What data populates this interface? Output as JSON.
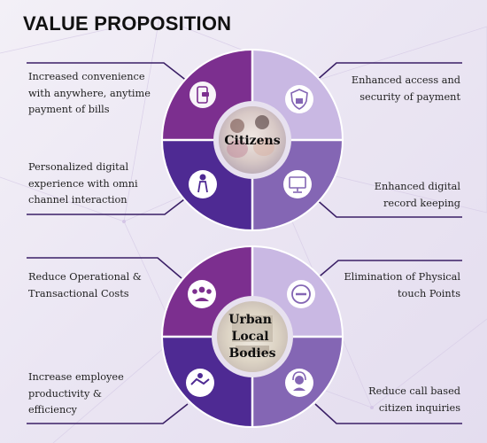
{
  "title": "VALUE PROPOSITION",
  "citizens": {
    "label": "Citizens",
    "callouts": {
      "top_left": "Increased convenience with anywhere, anytime payment of bills",
      "top_right": "Enhanced access and security of payment",
      "bottom_left": "Personalized digital experience with omni channel interaction",
      "bottom_right": "Enhanced digital record keeping"
    },
    "icons": {
      "top_left": "mobile-payment-icon",
      "top_right": "shield-lock-icon",
      "bottom_left": "person-touch-icon",
      "bottom_right": "computer-records-icon"
    }
  },
  "ulb": {
    "label_lines": [
      "Urban",
      "Local",
      "Bodies"
    ],
    "callouts": {
      "top_left": "Reduce Operational & Transactional Costs",
      "top_right": "Elimination of Physical touch Points",
      "bottom_left": "Increase employee productivity & efficiency",
      "bottom_right": "Reduce call based citizen inquiries"
    },
    "icons": {
      "top_left": "team-icon",
      "top_right": "no-entry-icon",
      "bottom_left": "handshake-icon",
      "bottom_right": "support-agent-icon"
    }
  },
  "colors": {
    "quad_top_left": "#7c2f8f",
    "quad_top_right": "#c9b8e3",
    "quad_bottom_left": "#4e2a93",
    "quad_bottom_right": "#8466b4",
    "line": "#3a1f66",
    "center_ring": "#e7e1ef"
  }
}
